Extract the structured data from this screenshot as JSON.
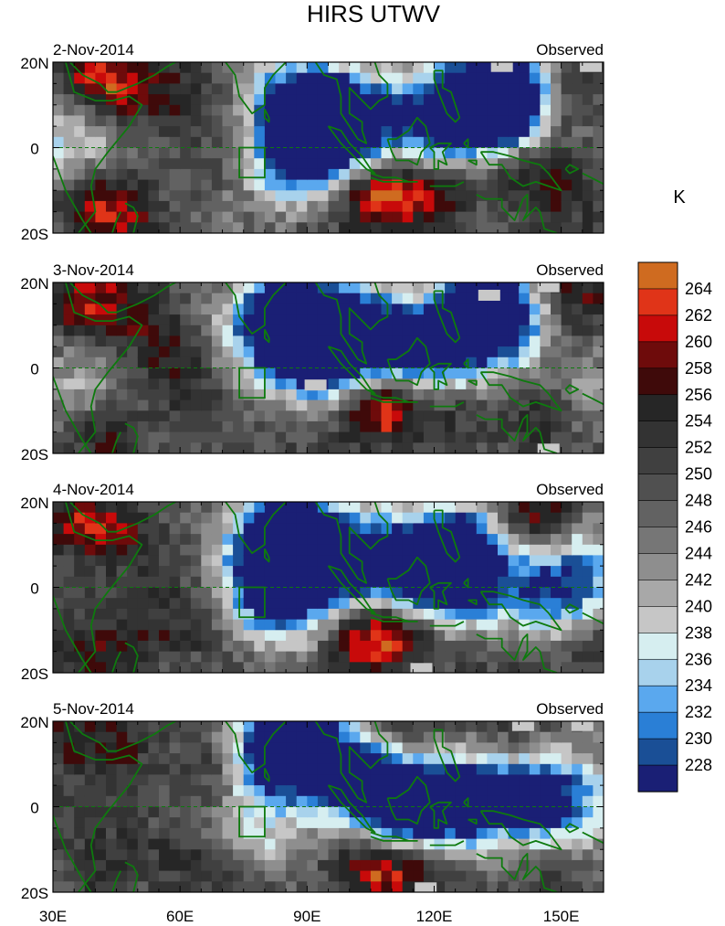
{
  "chart_data": {
    "type": "heatmap",
    "title": "HIRS UTWV",
    "units": "K",
    "x_range": [
      30,
      160
    ],
    "y_range": [
      -20,
      20
    ],
    "x_ticks": [
      30,
      60,
      90,
      120,
      150
    ],
    "x_tick_labels": [
      "30E",
      "60E",
      "90E",
      "120E",
      "150E"
    ],
    "y_ticks": [
      20,
      0,
      -20
    ],
    "y_tick_labels": [
      "20N",
      "0",
      "20S"
    ],
    "box_region": {
      "lon": [
        74,
        80
      ],
      "lat": [
        -7,
        0
      ]
    },
    "colorbar": {
      "levels": [
        228,
        230,
        232,
        234,
        236,
        238,
        240,
        242,
        244,
        246,
        248,
        250,
        252,
        254,
        256,
        258,
        260,
        262,
        264
      ],
      "labels": [
        "228",
        "230",
        "232",
        "234",
        "236",
        "238",
        "240",
        "242",
        "244",
        "246",
        "248",
        "250",
        "252",
        "254",
        "256",
        "258",
        "260",
        "262",
        "264"
      ],
      "colors": [
        "#1a1f75",
        "#1a4f96",
        "#2a7fd6",
        "#5aa8ee",
        "#a8d2ec",
        "#d6eef0",
        "#c6c6c6",
        "#a8a8a8",
        "#8e8e8e",
        "#767676",
        "#626262",
        "#505050",
        "#404040",
        "#333333",
        "#262626",
        "#3f0a0a",
        "#6e0b0b",
        "#c80a0a",
        "#e03418",
        "#cf6b20"
      ]
    },
    "panels": [
      {
        "date": "2-Nov-2014",
        "label": "Observed",
        "wet": [
          [
            92,
            8,
            1.0
          ],
          [
            85,
            10,
            0.6
          ],
          [
            96,
            7,
            0.7
          ],
          [
            90,
            -4,
            0.6
          ],
          [
            84,
            -3,
            0.4
          ],
          [
            103,
            4,
            0.5
          ],
          [
            113,
            10,
            0.45
          ],
          [
            136,
            13,
            1.0
          ],
          [
            132,
            11,
            0.85
          ],
          [
            140,
            8,
            0.55
          ],
          [
            126,
            6,
            0.4
          ],
          [
            32,
            2,
            0.5
          ],
          [
            121,
            3,
            0.5
          ]
        ],
        "dry": [
          [
            112,
            -11,
            1.0
          ],
          [
            103,
            -11,
            0.7
          ],
          [
            122,
            -11,
            0.7
          ],
          [
            40,
            16,
            0.9
          ],
          [
            50,
            13,
            0.6
          ],
          [
            62,
            14,
            0.45
          ],
          [
            40,
            -13,
            0.6
          ],
          [
            47,
            -15,
            0.5
          ],
          [
            150,
            10,
            0.5
          ],
          [
            145,
            -2,
            0.4
          ],
          [
            150,
            -8,
            0.45
          ],
          [
            138,
            -6,
            0.4
          ]
        ],
        "gray": [
          [
            157,
            19
          ],
          [
            136,
            19
          ]
        ]
      },
      {
        "date": "3-Nov-2014",
        "label": "Observed",
        "wet": [
          [
            90,
            11,
            1.0
          ],
          [
            82,
            13,
            0.8
          ],
          [
            96,
            9,
            0.8
          ],
          [
            80,
            4,
            0.5
          ],
          [
            94,
            -2,
            0.5
          ],
          [
            104,
            7,
            0.6
          ],
          [
            113,
            9,
            0.55
          ],
          [
            132,
            14,
            1.0
          ],
          [
            128,
            10,
            0.8
          ],
          [
            140,
            10,
            0.5
          ],
          [
            36,
            -6,
            0.35
          ],
          [
            118,
            3,
            0.45
          ],
          [
            120,
            -3,
            0.35
          ],
          [
            158,
            -4,
            0.35
          ]
        ],
        "dry": [
          [
            112,
            -10,
            1.0
          ],
          [
            104,
            -10,
            0.75
          ],
          [
            124,
            -10,
            0.55
          ],
          [
            38,
            15,
            0.8
          ],
          [
            50,
            14,
            0.55
          ],
          [
            118,
            19,
            0.6
          ],
          [
            155,
            17,
            0.6
          ],
          [
            42,
            -15,
            0.55
          ],
          [
            63,
            -10,
            0.4
          ],
          [
            145,
            -10,
            0.45
          ],
          [
            150,
            4,
            0.4
          ],
          [
            56,
            5,
            0.4
          ]
        ],
        "gray": [
          [
            92,
            -4
          ],
          [
            133,
            17
          ],
          [
            147,
            19
          ],
          [
            147,
            -19
          ]
        ]
      },
      {
        "date": "4-Nov-2014",
        "label": "Observed",
        "wet": [
          [
            86,
            12,
            1.0
          ],
          [
            80,
            9,
            0.8
          ],
          [
            92,
            10,
            0.7
          ],
          [
            96,
            3,
            0.6
          ],
          [
            80,
            -3,
            0.5
          ],
          [
            86,
            -6,
            0.5
          ],
          [
            105,
            6,
            0.6
          ],
          [
            113,
            5,
            0.5
          ],
          [
            126,
            10,
            0.9
          ],
          [
            120,
            4,
            0.6
          ],
          [
            124,
            -2,
            0.5
          ],
          [
            132,
            3,
            0.45
          ],
          [
            155,
            6,
            0.55
          ],
          [
            145,
            -2,
            0.45
          ],
          [
            153,
            -1,
            0.4
          ]
        ],
        "dry": [
          [
            108,
            -12,
            1.0
          ],
          [
            100,
            -12,
            0.7
          ],
          [
            117,
            -12,
            0.55
          ],
          [
            38,
            15,
            0.85
          ],
          [
            48,
            13,
            0.55
          ],
          [
            38,
            -14,
            0.5
          ],
          [
            48,
            -16,
            0.45
          ],
          [
            150,
            15,
            0.5
          ],
          [
            142,
            15,
            0.45
          ],
          [
            60,
            -10,
            0.4
          ],
          [
            158,
            -14,
            0.4
          ]
        ],
        "gray": [
          [
            117,
            -19
          ]
        ]
      },
      {
        "date": "5-Nov-2014",
        "label": "Observed",
        "wet": [
          [
            86,
            14,
            1.0
          ],
          [
            80,
            15,
            0.6
          ],
          [
            92,
            12,
            0.5
          ],
          [
            100,
            4,
            0.6
          ],
          [
            107,
            6,
            0.6
          ],
          [
            114,
            3,
            0.55
          ],
          [
            112,
            -4,
            0.45
          ],
          [
            125,
            4,
            0.55
          ],
          [
            138,
            6,
            0.5
          ],
          [
            145,
            0,
            0.55
          ],
          [
            152,
            3,
            0.45
          ],
          [
            132,
            -2,
            0.45
          ],
          [
            120,
            -4,
            0.4
          ],
          [
            80,
            -5,
            0.45
          ],
          [
            158,
            -2,
            0.35
          ]
        ],
        "dry": [
          [
            110,
            -15,
            1.0
          ],
          [
            102,
            -14,
            0.75
          ],
          [
            118,
            -13,
            0.55
          ],
          [
            112,
            18,
            0.6
          ],
          [
            35,
            16,
            0.6
          ],
          [
            46,
            15,
            0.5
          ],
          [
            42,
            -14,
            0.5
          ],
          [
            60,
            -12,
            0.35
          ],
          [
            150,
            -14,
            0.4
          ],
          [
            140,
            16,
            0.4
          ],
          [
            66,
            6,
            0.35
          ]
        ],
        "gray": [
          [
            141,
            19
          ],
          [
            118,
            -19
          ],
          [
            155,
            19
          ]
        ]
      }
    ]
  }
}
